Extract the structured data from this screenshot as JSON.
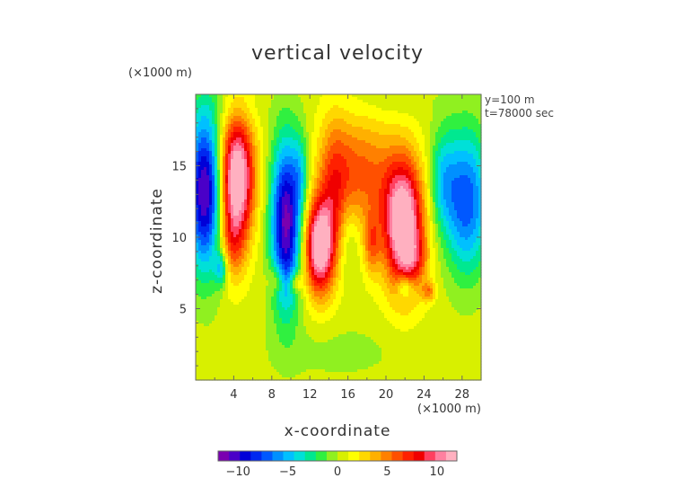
{
  "chart_data": {
    "type": "heatmap",
    "title": "vertical velocity",
    "xlabel": "x-coordinate",
    "ylabel": "z-coordinate",
    "x_unit": "(×1000 m)",
    "z_unit": "(×1000 m)",
    "annotations": [
      "y=100 m",
      "t=78000 sec"
    ],
    "xlim": [
      0,
      30
    ],
    "ylim": [
      0,
      20
    ],
    "x_ticks": [
      4,
      8,
      12,
      16,
      20,
      24,
      28
    ],
    "y_ticks": [
      5,
      10,
      15
    ],
    "colorbar": {
      "range": [
        -12,
        12
      ],
      "ticks": [
        -10,
        -5,
        0,
        5,
        10
      ],
      "colors": [
        "#7a00b0",
        "#4a00c8",
        "#0000d8",
        "#0028f0",
        "#0058ff",
        "#0090ff",
        "#00c0ff",
        "#00e0d8",
        "#00e890",
        "#30f040",
        "#90f020",
        "#d8f000",
        "#ffff00",
        "#ffd800",
        "#ffb000",
        "#ff8000",
        "#ff5000",
        "#ff2000",
        "#f00000",
        "#ff4060",
        "#ff80a0",
        "#ffb0c0"
      ]
    },
    "background_value": 0.6,
    "features": [
      {
        "x": 1.0,
        "z": 13.2,
        "sx": 1.3,
        "sz": 3.8,
        "amp": -12
      },
      {
        "x": 4.3,
        "z": 14.2,
        "sx": 1.3,
        "sz": 3.0,
        "amp": 13
      },
      {
        "x": 3.8,
        "z": 9.5,
        "sx": 1.0,
        "sz": 2.0,
        "amp": 4
      },
      {
        "x": 2.7,
        "z": 7.8,
        "sx": 0.5,
        "sz": 0.9,
        "amp": -5
      },
      {
        "x": 9.5,
        "z": 11.0,
        "sx": 1.1,
        "sz": 4.0,
        "amp": -12
      },
      {
        "x": 11.0,
        "z": 14.5,
        "sx": 0.6,
        "sz": 2.0,
        "amp": -3
      },
      {
        "x": 13.0,
        "z": 9.3,
        "sx": 1.1,
        "sz": 2.3,
        "amp": 12
      },
      {
        "x": 14.5,
        "z": 13.5,
        "sx": 1.2,
        "sz": 3.5,
        "amp": 5
      },
      {
        "x": 17.5,
        "z": 14.5,
        "sx": 2.2,
        "sz": 2.8,
        "amp": 5
      },
      {
        "x": 16.0,
        "z": 10.0,
        "sx": 0.8,
        "sz": 2.0,
        "amp": -2
      },
      {
        "x": 18.5,
        "z": 9.5,
        "sx": 0.6,
        "sz": 1.5,
        "amp": 4
      },
      {
        "x": 21.8,
        "z": 11.0,
        "sx": 1.5,
        "sz": 3.2,
        "amp": 13
      },
      {
        "x": 23.0,
        "z": 8.5,
        "sx": 1.0,
        "sz": 1.2,
        "amp": 3
      },
      {
        "x": 24.5,
        "z": 6.2,
        "sx": 0.5,
        "sz": 0.5,
        "amp": 4
      },
      {
        "x": 28.5,
        "z": 12.5,
        "sx": 1.6,
        "sz": 3.5,
        "amp": -8
      },
      {
        "x": 26.0,
        "z": 14.0,
        "sx": 1.0,
        "sz": 2.5,
        "amp": -4
      },
      {
        "x": 22.0,
        "z": 6.5,
        "sx": 0.6,
        "sz": 0.6,
        "amp": -4
      },
      {
        "x": 8.5,
        "z": 7.0,
        "sx": 0.6,
        "sz": 0.7,
        "amp": 3
      },
      {
        "x": 10.5,
        "z": 6.8,
        "sx": 0.5,
        "sz": 0.5,
        "amp": 4
      },
      {
        "x": 15.0,
        "z": 2.0,
        "sx": 6.0,
        "sz": 1.6,
        "amp": -0.9
      },
      {
        "x": 3.0,
        "z": 19.0,
        "sx": 3.0,
        "sz": 1.0,
        "amp": -0.8
      },
      {
        "x": 20.0,
        "z": 19.5,
        "sx": 4.0,
        "sz": 1.0,
        "amp": -0.7
      }
    ]
  },
  "page": {
    "title": "vertical velocity",
    "z_unit_label": "(×1000 m)",
    "x_unit_label": "(×1000 m)",
    "y_info": "y=100 m",
    "t_info": "t=78000 sec",
    "x_axis_label": "x-coordinate",
    "z_axis_label": "z-coordinate"
  }
}
